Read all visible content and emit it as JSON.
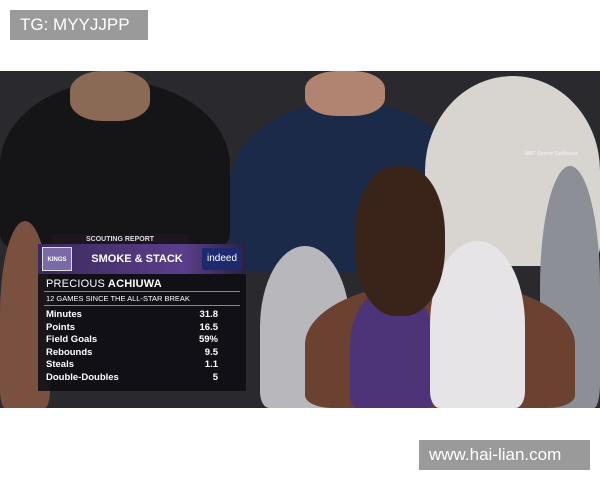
{
  "watermarks": {
    "top_left": "TG: MYYJJPP",
    "bottom_right": "www.hai-lian.com"
  },
  "broadcast": {
    "network_bug": "NBC Sports California"
  },
  "graphic": {
    "label": "SCOUTING REPORT",
    "team_logo": "KINGS",
    "title": "SMOKE & STACK",
    "sponsor": "indeed",
    "player_first": "PRECIOUS",
    "player_last": "ACHIUWA",
    "subtitle": "12 GAMES SINCE THE ALL-STAR BREAK",
    "stats": [
      {
        "label": "Minutes",
        "value": "31.8"
      },
      {
        "label": "Points",
        "value": "16.5"
      },
      {
        "label": "Field Goals",
        "value": "59%"
      },
      {
        "label": "Rebounds",
        "value": "9.5"
      },
      {
        "label": "Steals",
        "value": "1.1"
      },
      {
        "label": "Double-Doubles",
        "value": "5"
      }
    ],
    "colors": {
      "purple": "#5b3e8c",
      "panel": "#0f0c14"
    }
  }
}
